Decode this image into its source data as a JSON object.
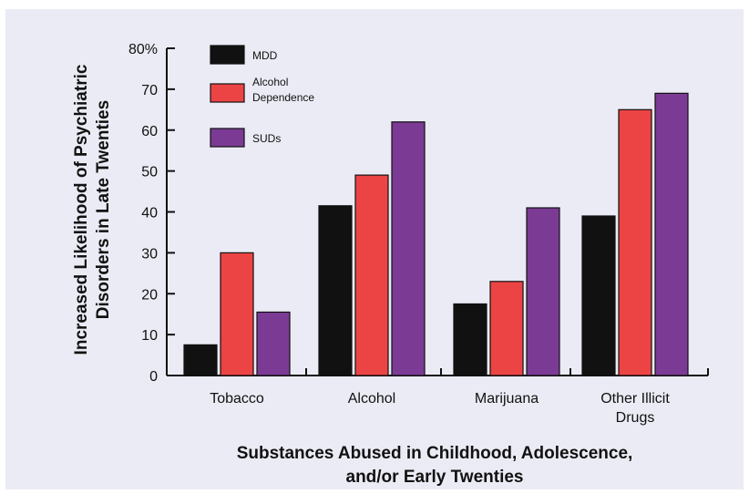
{
  "chart_data": {
    "type": "bar",
    "categories": [
      [
        "Tobacco"
      ],
      [
        "Alcohol"
      ],
      [
        "Marijuana"
      ],
      [
        "Other Illicit",
        "Drugs"
      ]
    ],
    "series": [
      {
        "name": "MDD",
        "color": "#111111",
        "values": [
          7.5,
          41.5,
          17.5,
          39
        ]
      },
      {
        "name": "Alcohol Dependence",
        "legend_lines": [
          "Alcohol",
          "Dependence"
        ],
        "color": "#ec4444",
        "values": [
          30,
          49,
          23,
          65
        ]
      },
      {
        "name": "SUDs",
        "color": "#7b3b94",
        "values": [
          15.5,
          62,
          41,
          69
        ]
      }
    ],
    "y_ticks": [
      "0",
      "10",
      "20",
      "30",
      "40",
      "50",
      "60",
      "70",
      "80%"
    ],
    "ylim": [
      0,
      80
    ],
    "ylabel": [
      "Increased Likelihood of Psychiatric",
      "Disorders in Late Twenties"
    ],
    "xlabel": [
      "Substances Abused in Childhood, Adolescence,",
      "and/or Early Twenties"
    ],
    "grid": false,
    "legend_position": "top-left"
  }
}
